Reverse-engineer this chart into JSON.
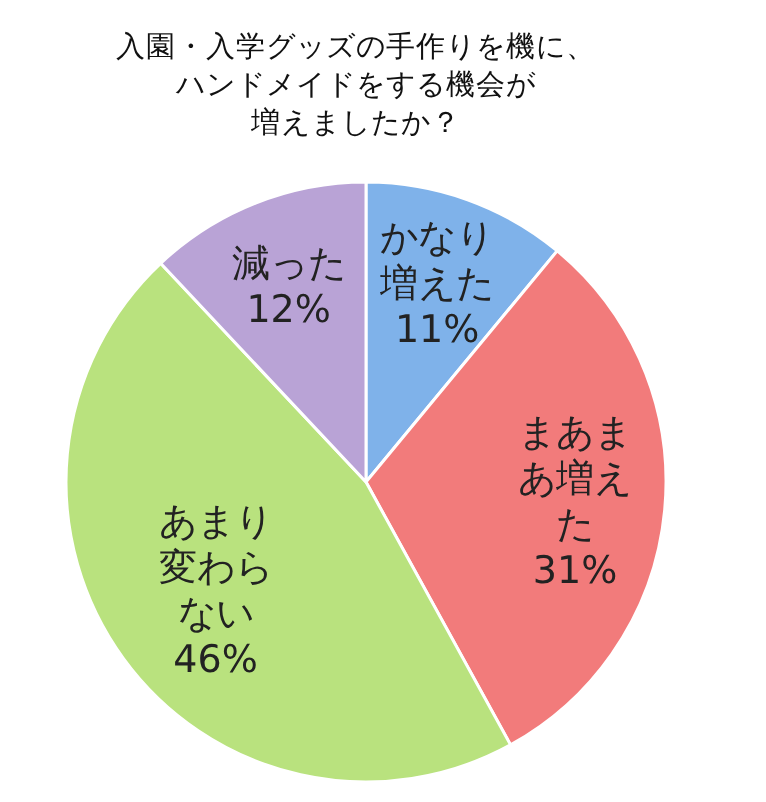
{
  "chart_data": {
    "type": "pie",
    "title": "入園・入学グッズの手作りを機に、ハンドメイドをする機会が増えましたか？",
    "categories": [
      "かなり増えた",
      "まあまあ増えた",
      "あまり変わらない",
      "減った"
    ],
    "values": [
      11,
      31,
      46,
      12
    ],
    "colors": [
      "#7fb2ea",
      "#f27b7b",
      "#b9e27e",
      "#b9a3d6"
    ],
    "value_labels": [
      "11%",
      "31%",
      "46%",
      "12%"
    ]
  }
}
